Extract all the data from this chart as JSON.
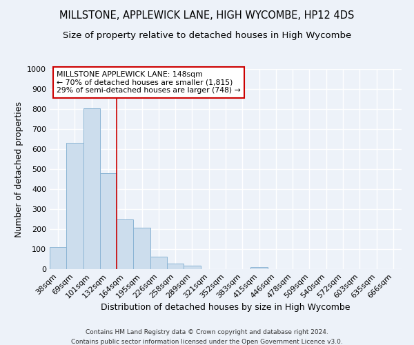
{
  "title1": "MILLSTONE, APPLEWICK LANE, HIGH WYCOMBE, HP12 4DS",
  "title2": "Size of property relative to detached houses in High Wycombe",
  "xlabel": "Distribution of detached houses by size in High Wycombe",
  "ylabel": "Number of detached properties",
  "footer1": "Contains HM Land Registry data © Crown copyright and database right 2024.",
  "footer2": "Contains public sector information licensed under the Open Government Licence v3.0.",
  "bin_labels": [
    "38sqm",
    "69sqm",
    "101sqm",
    "132sqm",
    "164sqm",
    "195sqm",
    "226sqm",
    "258sqm",
    "289sqm",
    "321sqm",
    "352sqm",
    "383sqm",
    "415sqm",
    "446sqm",
    "478sqm",
    "509sqm",
    "540sqm",
    "572sqm",
    "603sqm",
    "635sqm",
    "666sqm"
  ],
  "bar_heights": [
    110,
    630,
    805,
    480,
    250,
    208,
    62,
    27,
    18,
    0,
    0,
    0,
    10,
    0,
    0,
    0,
    0,
    0,
    0,
    0,
    0
  ],
  "bar_color": "#ccdded",
  "bar_edge_color": "#8ab4d4",
  "vline_x": 3.5,
  "vline_color": "#cc0000",
  "annotation_text": "MILLSTONE APPLEWICK LANE: 148sqm\n← 70% of detached houses are smaller (1,815)\n29% of semi-detached houses are larger (748) →",
  "annotation_box_color": "#ffffff",
  "annotation_box_edge": "#cc0000",
  "ylim": [
    0,
    1000
  ],
  "yticks": [
    0,
    100,
    200,
    300,
    400,
    500,
    600,
    700,
    800,
    900,
    1000
  ],
  "background_color": "#edf2f9",
  "grid_color": "#ffffff",
  "title_fontsize": 10.5,
  "subtitle_fontsize": 9.5,
  "axis_label_fontsize": 9,
  "tick_fontsize": 8,
  "footer_fontsize": 6.5
}
